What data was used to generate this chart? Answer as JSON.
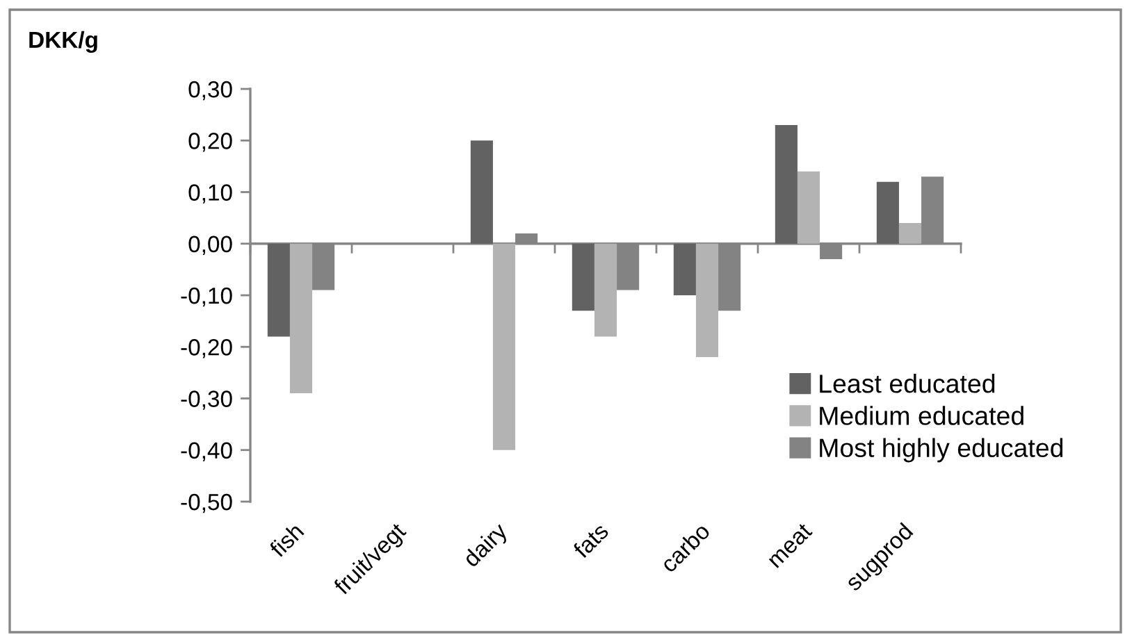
{
  "chart_data": {
    "type": "bar",
    "ylabel": "DKK/g",
    "categories": [
      "fish",
      "fruit/vegt",
      "dairy",
      "fats",
      "carbo",
      "meat",
      "sugprod"
    ],
    "series": [
      {
        "name": "Least educated",
        "color": "#626262",
        "values": [
          -0.18,
          null,
          0.2,
          -0.13,
          -0.1,
          0.23,
          0.12
        ]
      },
      {
        "name": "Medium educated",
        "color": "#b3b3b3",
        "values": [
          -0.29,
          null,
          -0.4,
          -0.18,
          -0.22,
          0.14,
          0.04
        ]
      },
      {
        "name": "Most highly educated",
        "color": "#838383",
        "values": [
          -0.09,
          null,
          0.02,
          -0.09,
          -0.13,
          -0.03,
          0.13
        ]
      }
    ],
    "ylim": [
      -0.5,
      0.3
    ],
    "yticks": [
      {
        "value": 0.3,
        "label": "0,30"
      },
      {
        "value": 0.2,
        "label": "0,20"
      },
      {
        "value": 0.1,
        "label": "0,10"
      },
      {
        "value": 0,
        "label": "0,00"
      },
      {
        "value": -0.1,
        "label": "-0,10"
      },
      {
        "value": -0.2,
        "label": "-0,20"
      },
      {
        "value": -0.3,
        "label": "-0,30"
      },
      {
        "value": -0.4,
        "label": "-0,40"
      },
      {
        "value": -0.5,
        "label": "-0,50"
      }
    ],
    "legend": "bottom right"
  }
}
